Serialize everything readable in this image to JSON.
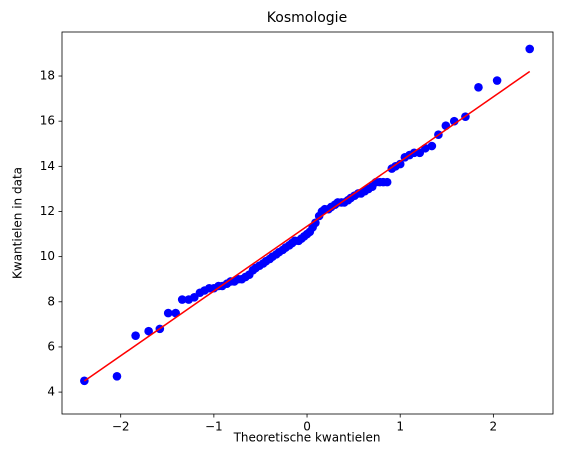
{
  "chart_data": {
    "type": "scatter",
    "title": "Kosmologie",
    "x_label": "Theoretische kwantielen",
    "y_label": "Kwantielen in data",
    "xlim": [
      -2.63,
      2.64
    ],
    "ylim": [
      3.03,
      19.95
    ],
    "xticks": [
      {
        "value": -2,
        "label": "−2"
      },
      {
        "value": -1,
        "label": "−1"
      },
      0,
      1,
      2
    ],
    "yticks": [
      4,
      6,
      8,
      10,
      12,
      14,
      16,
      18
    ],
    "points": {
      "color": "#0000ff",
      "x": [
        -2.39,
        -2.04,
        -1.84,
        -1.7,
        -1.58,
        -1.49,
        -1.41,
        -1.34,
        -1.27,
        -1.21,
        -1.15,
        -1.1,
        -1.05,
        -1.0,
        -0.95,
        -0.91,
        -0.86,
        -0.82,
        -0.78,
        -0.74,
        -0.7,
        -0.66,
        -0.62,
        -0.58,
        -0.55,
        -0.51,
        -0.47,
        -0.44,
        -0.4,
        -0.37,
        -0.33,
        -0.3,
        -0.26,
        -0.23,
        -0.19,
        -0.16,
        -0.13,
        -0.09,
        -0.06,
        -0.03,
        0.0,
        0.03,
        0.06,
        0.09,
        0.13,
        0.16,
        0.19,
        0.23,
        0.26,
        0.3,
        0.33,
        0.37,
        0.4,
        0.44,
        0.47,
        0.51,
        0.55,
        0.58,
        0.62,
        0.66,
        0.7,
        0.74,
        0.78,
        0.82,
        0.86,
        0.91,
        0.95,
        1.0,
        1.05,
        1.1,
        1.15,
        1.21,
        1.27,
        1.34,
        1.41,
        1.49,
        1.58,
        1.7,
        1.84,
        2.04,
        2.39
      ],
      "values": [
        4.5,
        4.7,
        6.5,
        6.7,
        6.8,
        7.5,
        7.5,
        8.1,
        8.1,
        8.2,
        8.4,
        8.5,
        8.6,
        8.6,
        8.7,
        8.7,
        8.8,
        8.9,
        8.9,
        9.0,
        9.0,
        9.1,
        9.2,
        9.4,
        9.5,
        9.6,
        9.7,
        9.8,
        9.9,
        10.0,
        10.1,
        10.2,
        10.3,
        10.4,
        10.5,
        10.6,
        10.7,
        10.7,
        10.8,
        10.9,
        11.0,
        11.1,
        11.3,
        11.5,
        11.8,
        12.0,
        12.1,
        12.1,
        12.2,
        12.3,
        12.4,
        12.4,
        12.4,
        12.5,
        12.6,
        12.7,
        12.8,
        12.8,
        12.9,
        13.0,
        13.1,
        13.3,
        13.3,
        13.3,
        13.3,
        13.9,
        14.0,
        14.1,
        14.4,
        14.5,
        14.6,
        14.6,
        14.8,
        14.9,
        15.4,
        15.8,
        16.0,
        16.2,
        17.5,
        17.8,
        19.2
      ]
    },
    "fit": {
      "color": "#ff0000",
      "x": [
        -2.39,
        2.39
      ],
      "values": [
        4.49,
        18.2
      ]
    }
  }
}
